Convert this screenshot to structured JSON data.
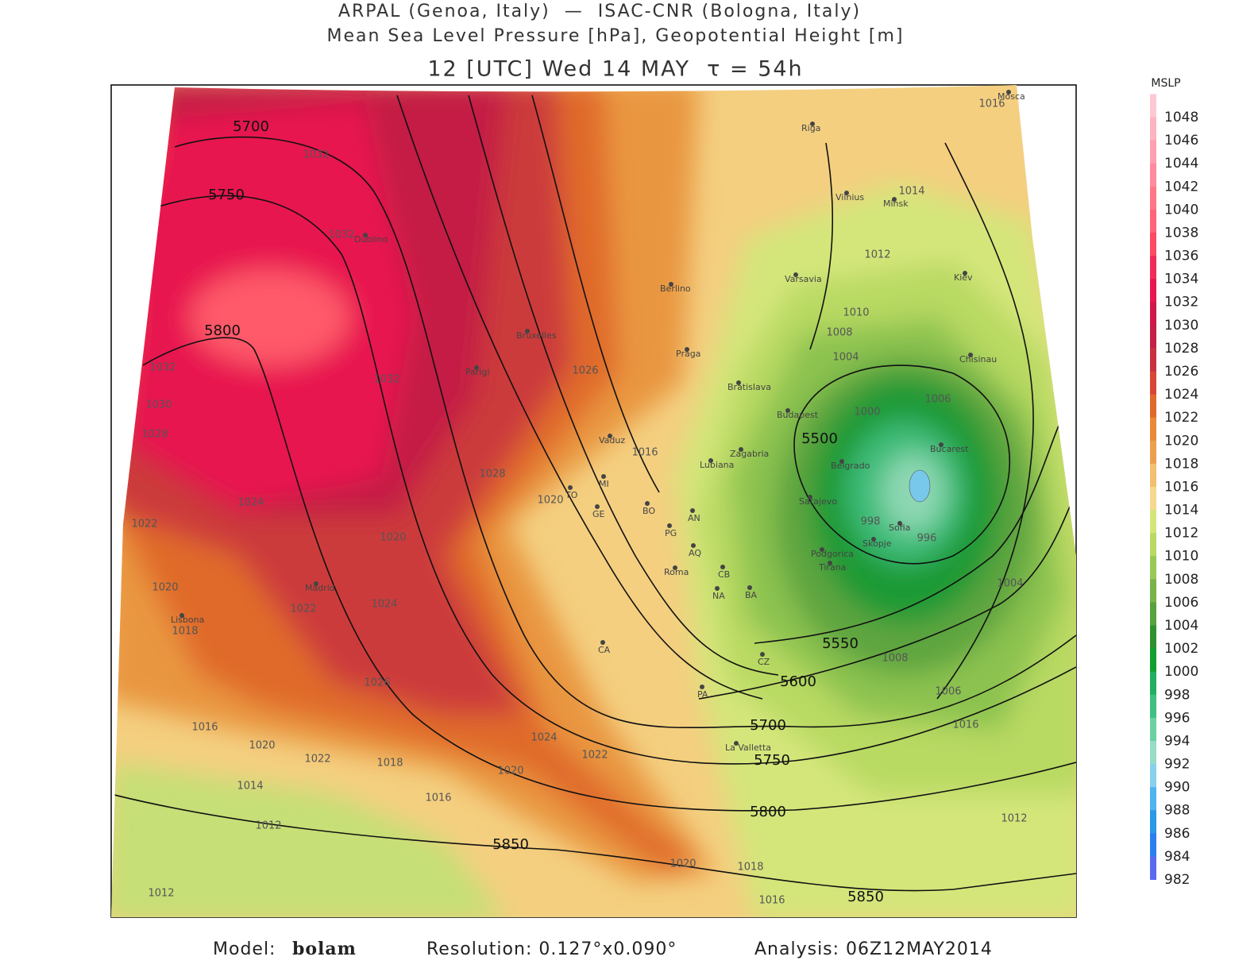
{
  "header": {
    "line1": "ARPAL (Genoa, Italy)  —  ISAC-CNR (Bologna, Italy)",
    "line2": "Mean Sea Level Pressure [hPa], Geopotential Height [m]",
    "line3": "12 [UTC] Wed 14 MAY  τ = 54h"
  },
  "colorbar": {
    "title": "MSLP",
    "levels": [
      1048,
      1046,
      1044,
      1042,
      1040,
      1038,
      1036,
      1034,
      1032,
      1030,
      1028,
      1026,
      1024,
      1022,
      1020,
      1018,
      1016,
      1014,
      1012,
      1010,
      1008,
      1006,
      1004,
      1002,
      1000,
      998,
      996,
      994,
      992,
      990,
      988,
      986,
      984,
      982
    ],
    "colors": [
      "#ffc8d2",
      "#ffb4c0",
      "#ffa0b0",
      "#ff8c9e",
      "#ff7888",
      "#ff6478",
      "#ff4a64",
      "#f02b5a",
      "#e8184f",
      "#d01848",
      "#c41f45",
      "#c83040",
      "#d84638",
      "#e06a2c",
      "#e88a38",
      "#eba050",
      "#f2c070",
      "#f6d890",
      "#d4e67a",
      "#b8d962",
      "#98c856",
      "#78b44a",
      "#56a23e",
      "#2e9030",
      "#10a030",
      "#20b060",
      "#40c080",
      "#6cd0a0",
      "#98dcc8",
      "#88d0ee",
      "#50b4ee",
      "#2c98e6",
      "#2a7ef0",
      "#5a6af0"
    ]
  },
  "map": {
    "height_labels": [
      5700,
      5750,
      5800,
      5500,
      5550,
      5600,
      5700,
      5750,
      5800,
      5850,
      5850
    ],
    "pressure_labels": [
      1032,
      1032,
      1032,
      1032,
      1030,
      1028,
      1026,
      1028,
      1024,
      1022,
      1020,
      1018,
      1022,
      1024,
      1026,
      1020,
      1020,
      1016,
      1014,
      1012,
      1010,
      1008,
      1004,
      1000,
      1006,
      998,
      996,
      1008,
      1006,
      1016,
      1016,
      1016,
      1020,
      1022,
      1018,
      1014,
      1016,
      1020,
      1024,
      1022,
      1012,
      1012,
      1020,
      1018,
      1016,
      1012,
      1004
    ],
    "cities": [
      "Mosca",
      "Riga",
      "Vilnius",
      "Minsk",
      "Varsavia",
      "Kiev",
      "Berlino",
      "Praga",
      "Bratislava",
      "Budapest",
      "Chisinau",
      "Zagabria",
      "Lubiana",
      "Belgrado",
      "Bucarest",
      "Sarajevo",
      "Sofia",
      "Skopje",
      "Podgorica",
      "Tirana",
      "Lisbona",
      "Madrid",
      "Vaduz",
      "Roma",
      "La Valletta",
      "Bruxelles",
      "Parigi",
      "Dublino"
    ],
    "provinces": [
      "MI",
      "TO",
      "GE",
      "BO",
      "PG",
      "AN",
      "AQ",
      "CB",
      "NA",
      "BA",
      "CA",
      "CZ",
      "PA"
    ]
  },
  "footer": {
    "model_label": "Model:",
    "model": "bolam",
    "resolution": "Resolution: 0.127°x0.090°",
    "analysis": "Analysis: 06Z12MAY2014"
  }
}
